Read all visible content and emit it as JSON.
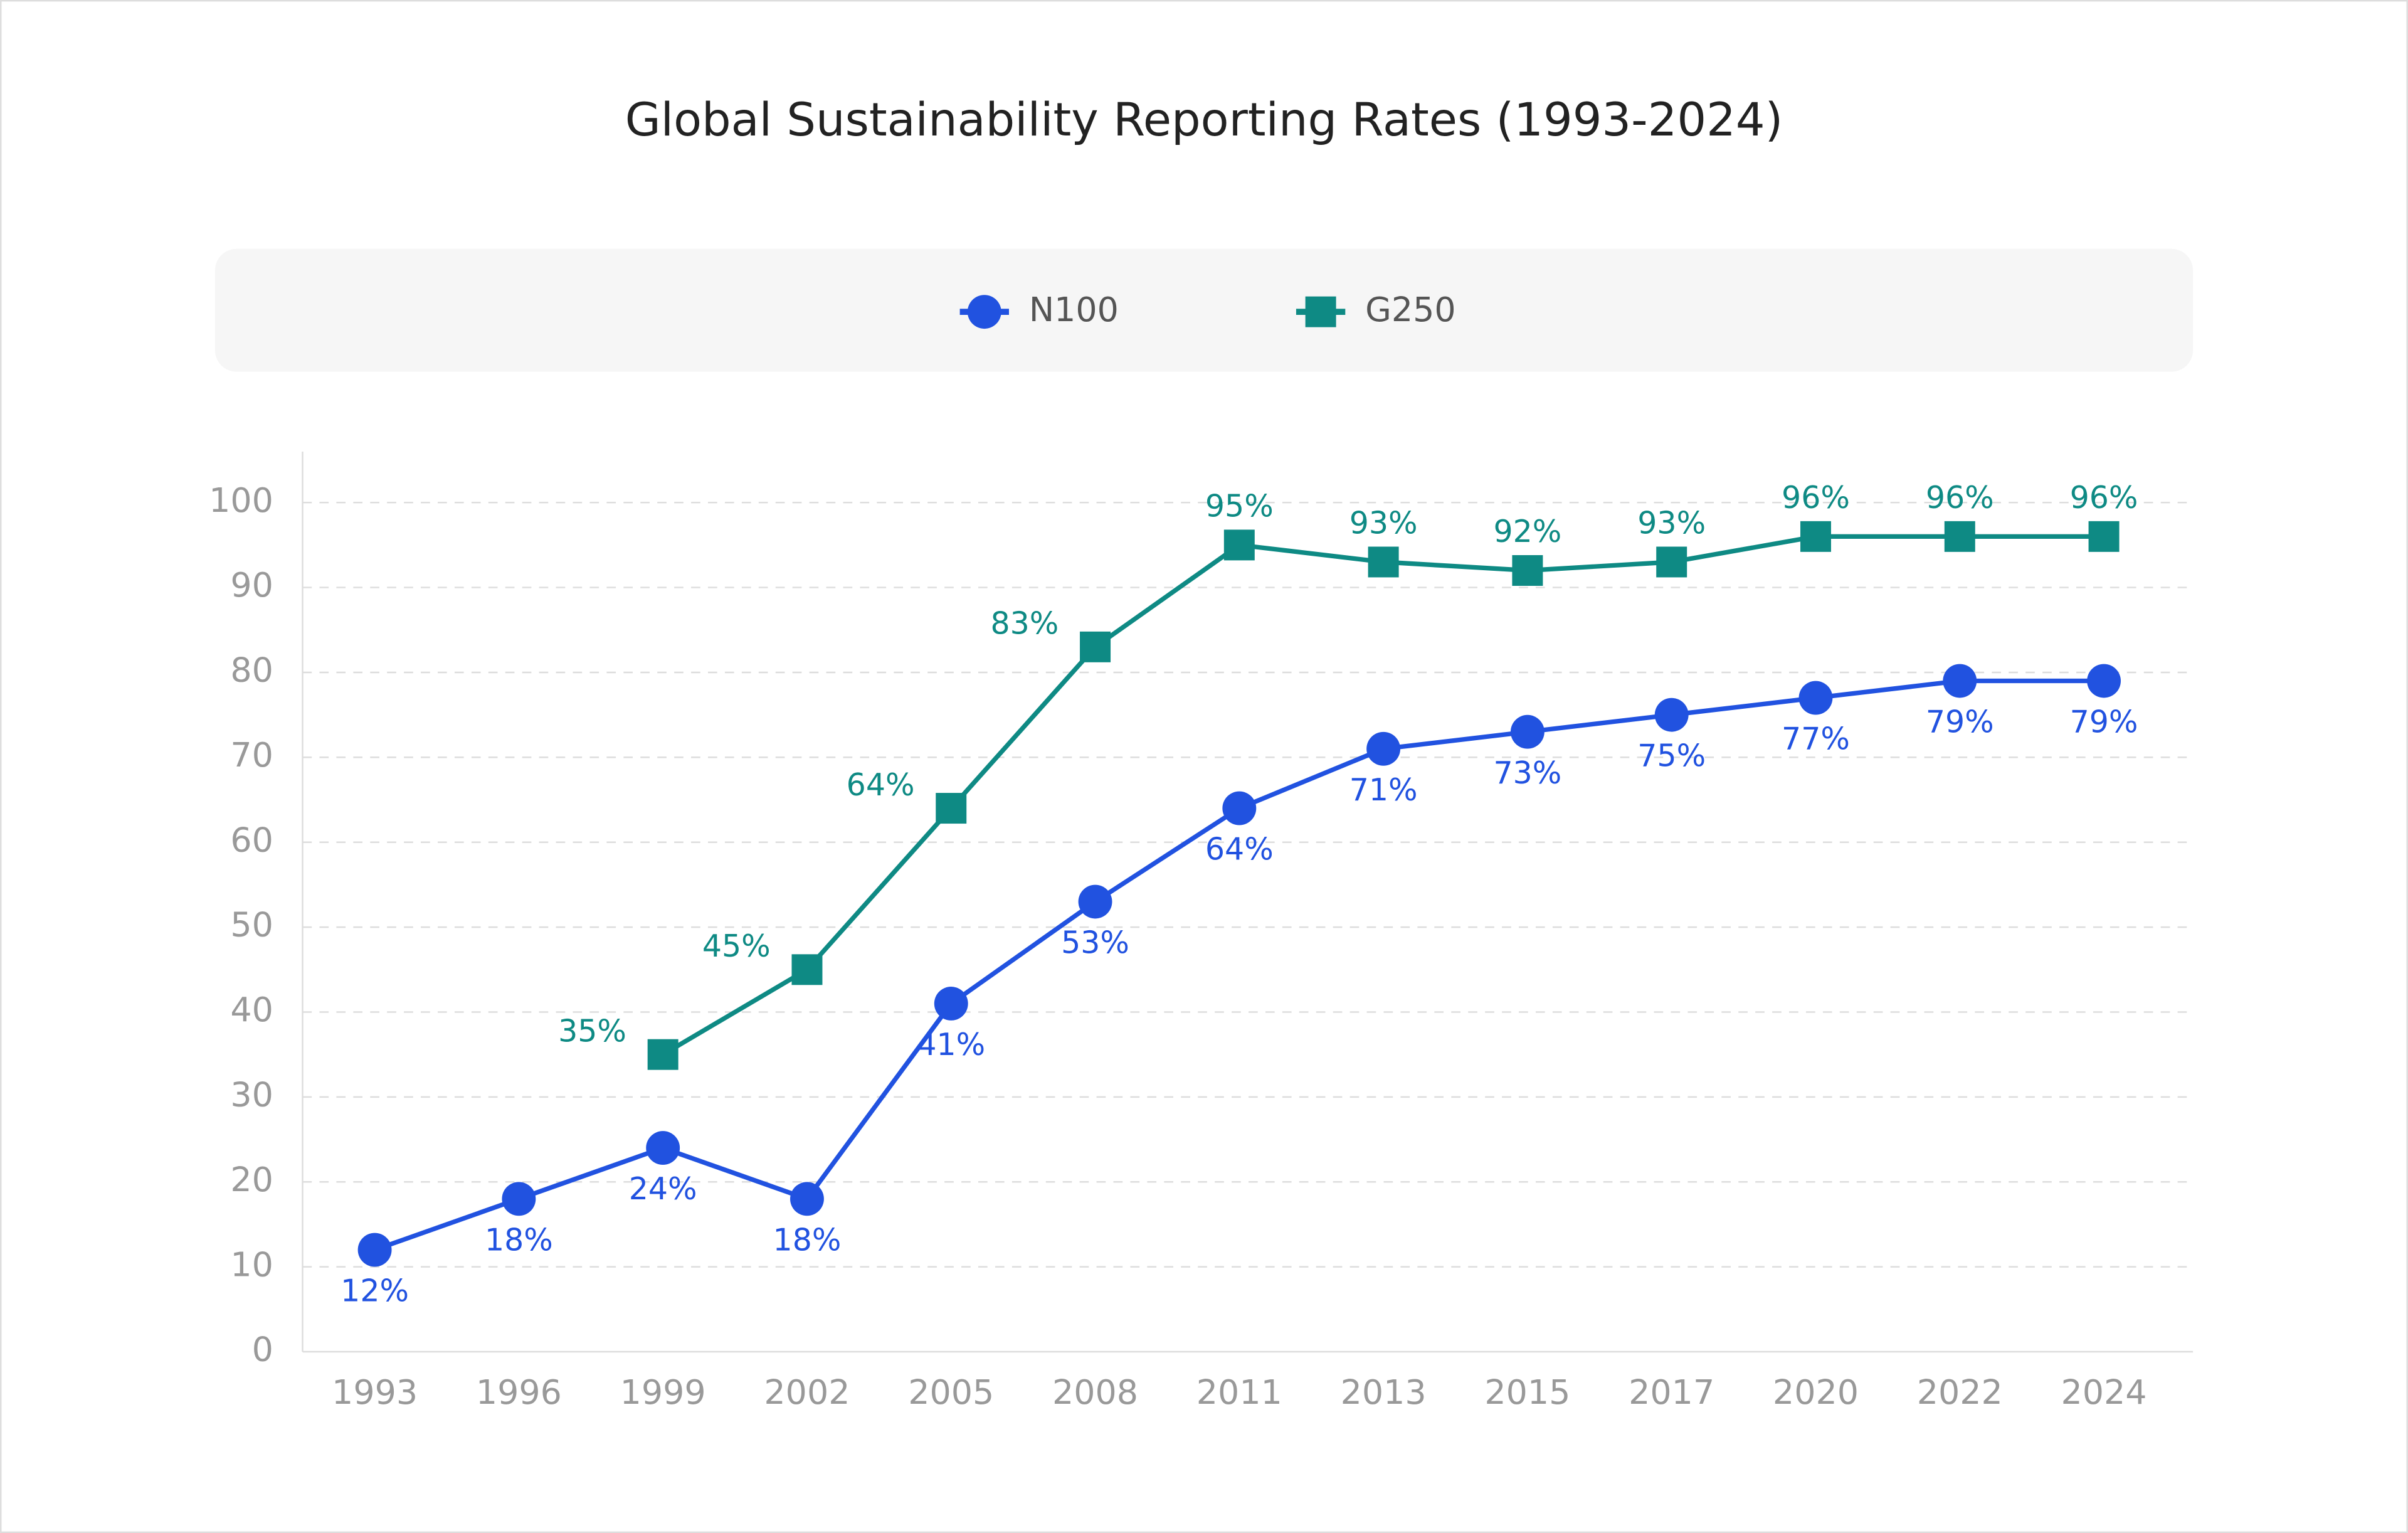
{
  "chart_data": {
    "type": "line",
    "title": "Global Sustainability Reporting Rates (1993-2024)",
    "categories": [
      "1993",
      "1996",
      "1999",
      "2002",
      "2005",
      "2008",
      "2011",
      "2013",
      "2015",
      "2017",
      "2020",
      "2022",
      "2024"
    ],
    "series": [
      {
        "name": "N100",
        "color": "#2152e0",
        "marker": "circle",
        "values": [
          12,
          18,
          24,
          18,
          41,
          53,
          64,
          71,
          73,
          75,
          77,
          79,
          79
        ],
        "value_labels": [
          "12%",
          "18%",
          "24%",
          "18%",
          "41%",
          "53%",
          "64%",
          "71%",
          "73%",
          "75%",
          "77%",
          "79%",
          "79%"
        ]
      },
      {
        "name": "G250",
        "color": "#0e8a84",
        "marker": "square",
        "values": [
          null,
          null,
          35,
          45,
          64,
          83,
          95,
          93,
          92,
          93,
          96,
          96,
          96
        ],
        "value_labels": [
          null,
          null,
          "35%",
          "45%",
          "64%",
          "83%",
          "95%",
          "93%",
          "92%",
          "93%",
          "96%",
          "96%",
          "96%"
        ]
      }
    ],
    "ylim": [
      0,
      106
    ],
    "yticks": [
      0,
      10,
      20,
      30,
      40,
      50,
      60,
      70,
      80,
      90,
      100
    ],
    "grid": true,
    "legend": "top"
  }
}
